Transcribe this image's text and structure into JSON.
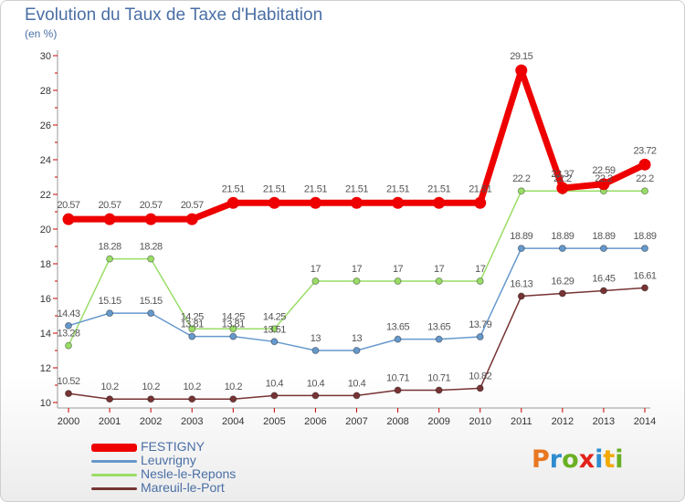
{
  "title": "Evolution du Taux de Taxe d'Habitation",
  "subtitle": "(en %)",
  "logo": [
    "P",
    "r",
    "o",
    "x",
    "i",
    "t",
    "i"
  ],
  "logo_colors": [
    "#e87722",
    "#2e8ccf",
    "#6ab023",
    "#e2231a",
    "#2e8ccf",
    "#f2a900",
    "#6ab023"
  ],
  "chart_data": {
    "type": "line",
    "x": [
      2000,
      2001,
      2002,
      2003,
      2004,
      2005,
      2006,
      2007,
      2008,
      2009,
      2010,
      2011,
      2012,
      2013,
      2014
    ],
    "ylim": [
      10,
      30
    ],
    "yticks": [
      10,
      12,
      14,
      16,
      18,
      20,
      22,
      24,
      26,
      28,
      30
    ],
    "grid": false,
    "legend_position": "bottom-left",
    "series": [
      {
        "name": "FESTIGNY",
        "color": "#ee0000",
        "values": [
          20.57,
          20.57,
          20.57,
          20.57,
          21.51,
          21.51,
          21.51,
          21.51,
          21.51,
          21.51,
          21.51,
          29.15,
          22.37,
          22.59,
          23.72
        ],
        "labels": [
          "20.57",
          "20.57",
          "20.57",
          "20.57",
          "21.51",
          "21.51",
          "21.51",
          "21.51",
          "21.51",
          "21.51",
          "21.51",
          "29.15",
          "22.37",
          "22.59",
          "23.72"
        ]
      },
      {
        "name": "Leuvrigny",
        "color": "#6699cc",
        "values": [
          14.43,
          15.15,
          15.15,
          13.81,
          13.81,
          13.51,
          13,
          13,
          13.65,
          13.65,
          13.79,
          18.89,
          18.89,
          18.89,
          18.89
        ],
        "labels": [
          "14.43",
          "15.15",
          "15.15",
          "13.81",
          "13.81",
          "13.51",
          "13",
          "13",
          "13.65",
          "13.65",
          "13.79",
          "18.89",
          "18.89",
          "18.89",
          "18.89"
        ]
      },
      {
        "name": "Nesle-le-Repons",
        "color": "#99dd66",
        "values": [
          13.28,
          18.28,
          18.28,
          14.25,
          14.25,
          14.25,
          17,
          17,
          17,
          17,
          17,
          22.2,
          22.2,
          22.2,
          22.2
        ],
        "labels": [
          "13.28",
          "18.28",
          "18.28",
          "14.25",
          "14.25",
          "14.25",
          "17",
          "17",
          "17",
          "17",
          "17",
          "22.2",
          "22.2",
          "22.2",
          "22.2"
        ]
      },
      {
        "name": "Mareuil-le-Port",
        "color": "#773333",
        "values": [
          10.52,
          10.2,
          10.2,
          10.2,
          10.2,
          10.4,
          10.4,
          10.4,
          10.71,
          10.71,
          10.82,
          16.13,
          16.29,
          16.45,
          16.61
        ],
        "labels": [
          "10.52",
          "10.2",
          "10.2",
          "10.2",
          "10.2",
          "10.4",
          "10.4",
          "10.4",
          "10.71",
          "10.71",
          "10.82",
          "16.13",
          "16.29",
          "16.45",
          "16.61"
        ]
      }
    ]
  }
}
